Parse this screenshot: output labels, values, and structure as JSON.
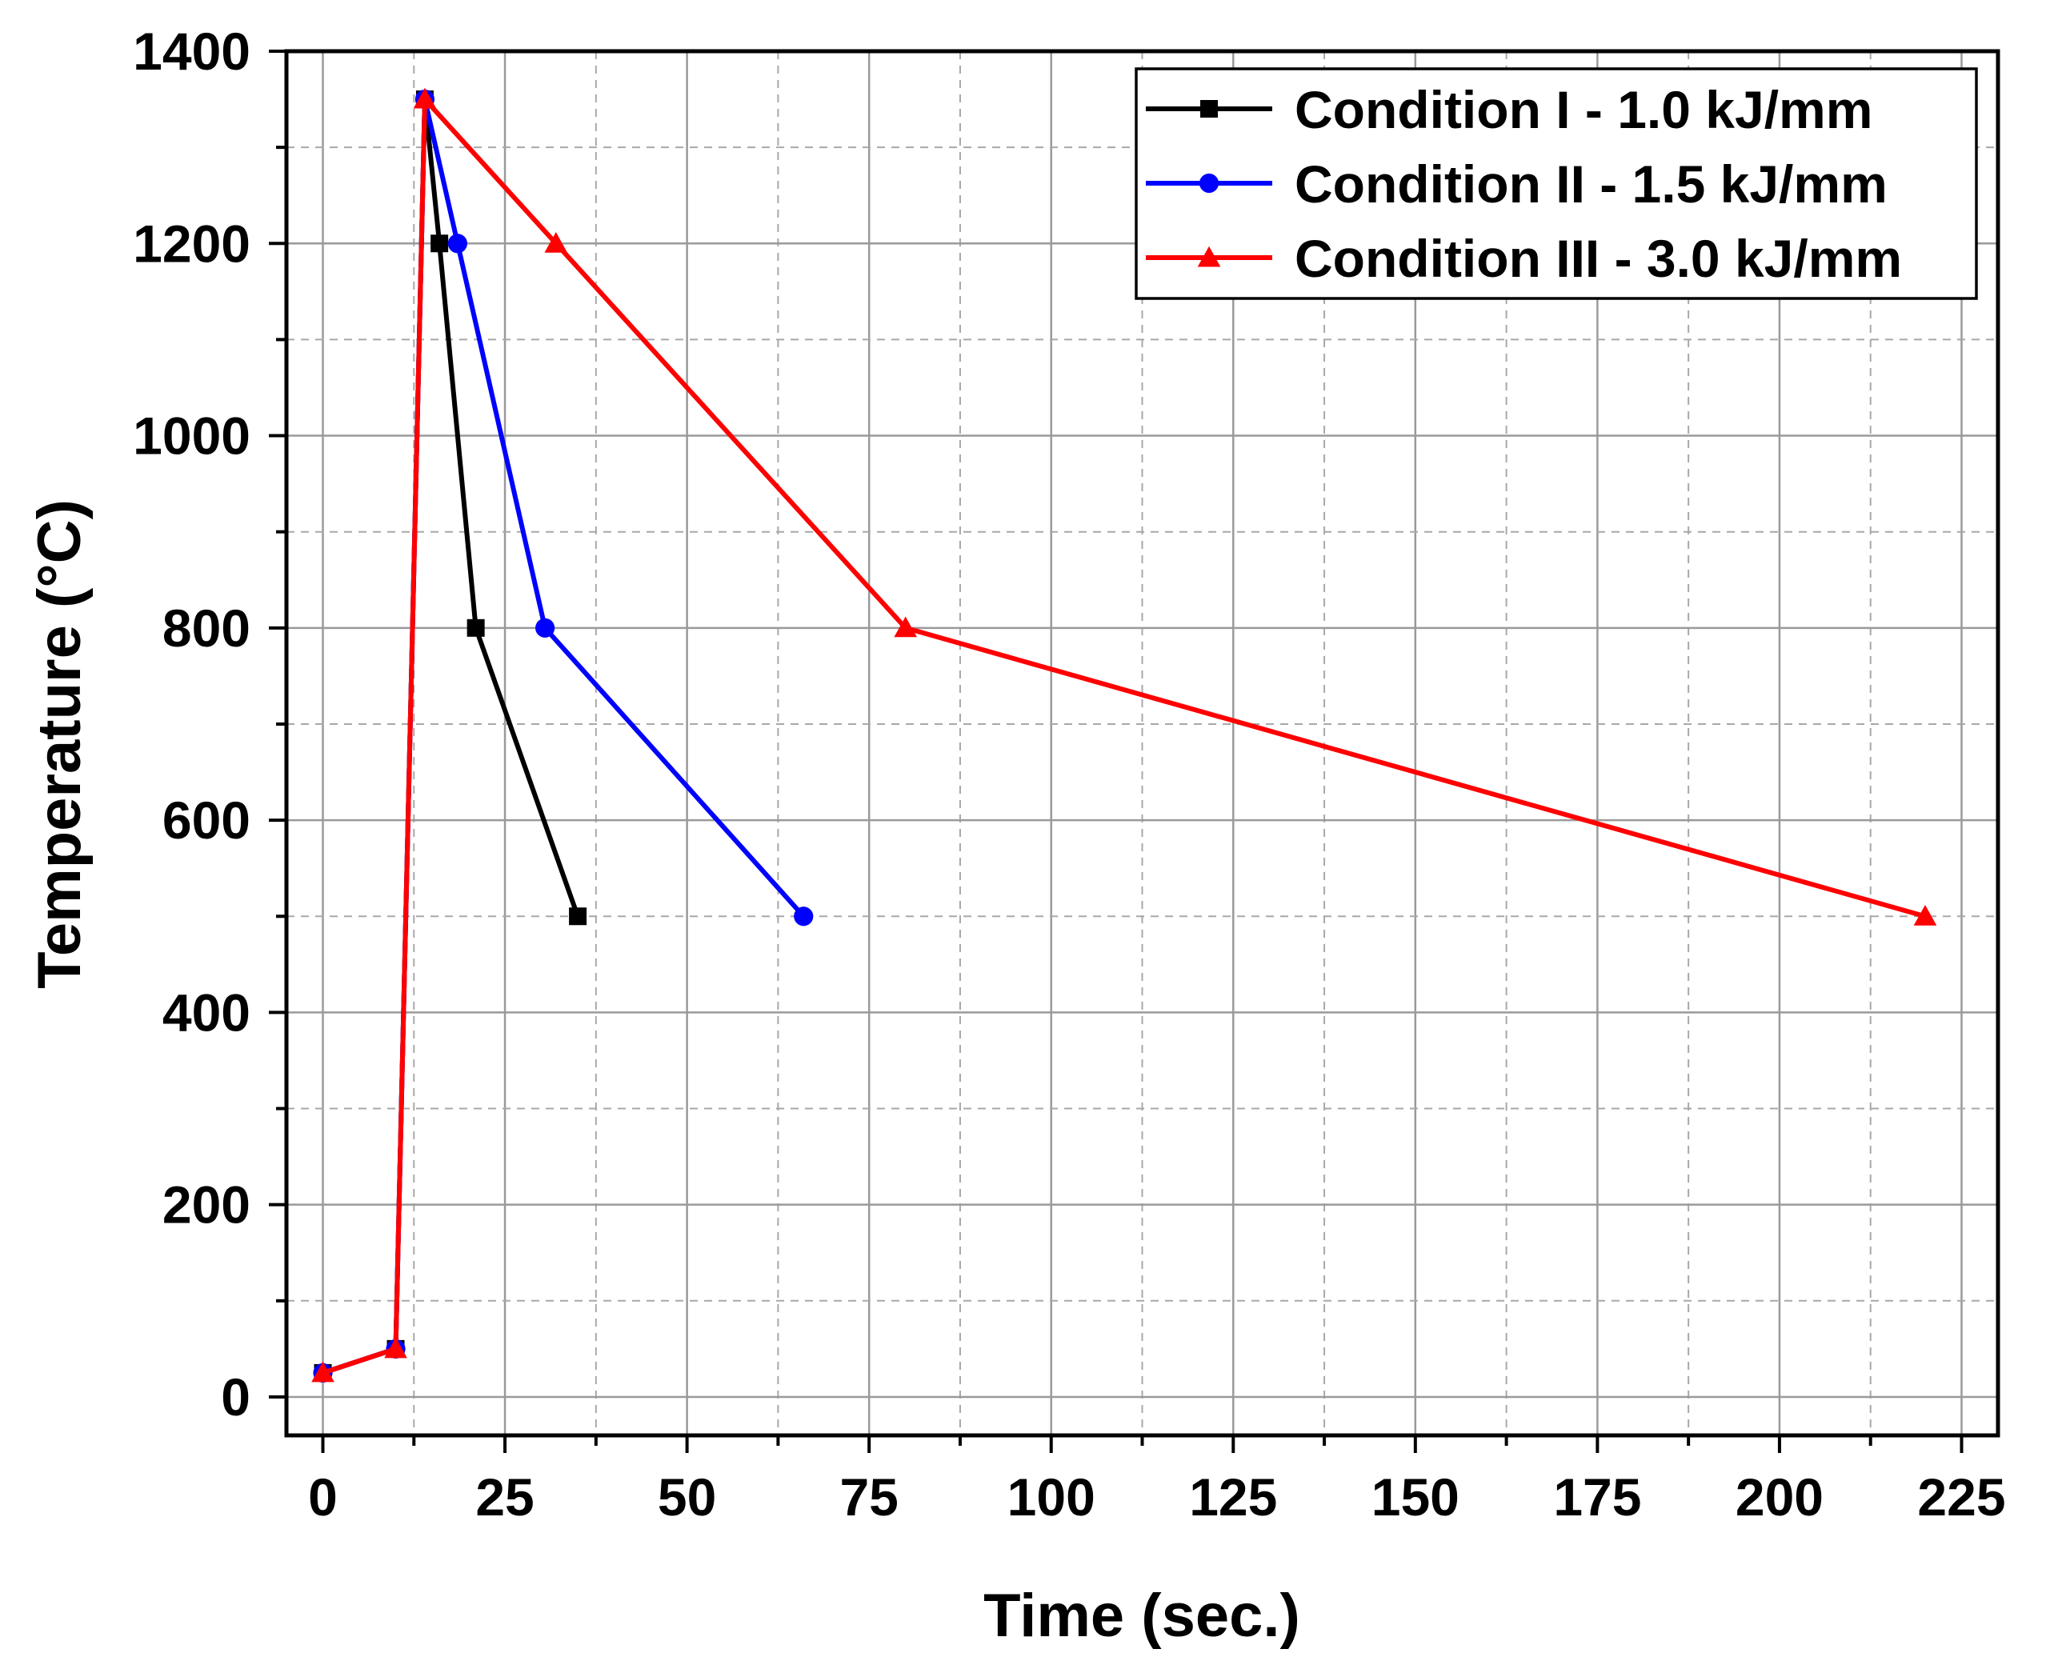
{
  "chart_data": {
    "type": "line",
    "title": "",
    "xlabel": "Time (sec.)",
    "ylabel": "Temperature (°C)",
    "xlim": [
      -5,
      230
    ],
    "ylim": [
      -40,
      1400
    ],
    "xticks": [
      0,
      25,
      50,
      75,
      100,
      125,
      150,
      175,
      200,
      225
    ],
    "yticks": [
      0,
      200,
      400,
      600,
      800,
      1000,
      1200,
      1400
    ],
    "grid": true,
    "legend_position": "top-right",
    "series": [
      {
        "name": "Condition I - 1.0 kJ/mm",
        "color": "#000000",
        "marker": "square",
        "x": [
          0,
          10,
          14,
          16,
          21,
          35
        ],
        "y": [
          25,
          50,
          1350,
          1200,
          800,
          500
        ]
      },
      {
        "name": "Condition II - 1.5 kJ/mm",
        "color": "#0000ff",
        "marker": "circle",
        "x": [
          0,
          10,
          14,
          18.5,
          30.5,
          66
        ],
        "y": [
          25,
          50,
          1350,
          1200,
          800,
          500
        ]
      },
      {
        "name": "Condition III - 3.0 kJ/mm",
        "color": "#ff0000",
        "marker": "triangle",
        "x": [
          0,
          10,
          14,
          32,
          80,
          220
        ],
        "y": [
          25,
          50,
          1350,
          1200,
          800,
          500
        ]
      }
    ]
  }
}
